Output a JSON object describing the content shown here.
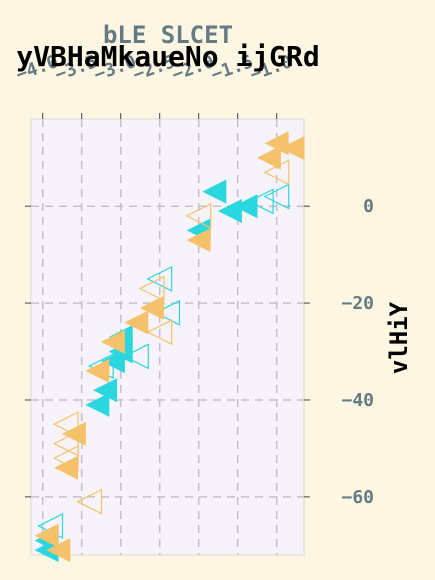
{
  "chart_data": {
    "type": "scatter",
    "suptitle": "bLE SLCET",
    "title": "yVBHaMkaueNo ijGRd",
    "xlabel": "",
    "ylabel": "vlHiY",
    "xlim": [
      -4.15,
      -0.65
    ],
    "ylim": [
      -72,
      18
    ],
    "xticks": [
      -4.0,
      -3.5,
      -3.0,
      -2.5,
      -2.0,
      -1.5,
      -1.0
    ],
    "xtick_labels": [
      "−4.0",
      "−3.5",
      "−3.0",
      "−2.5",
      "−2.0",
      "−1.5",
      "−1.0"
    ],
    "yticks": [
      -60,
      -40,
      -20,
      0
    ],
    "ytick_labels": [
      "−60",
      "−40",
      "−20",
      "0"
    ],
    "grid": true,
    "grid_style": "dashed",
    "legend": "none",
    "colors": {
      "cyan": "#2ad7de",
      "orange": "#f5c26b"
    },
    "series": [
      {
        "marker": "triangle-left",
        "color": "#2ad7de",
        "filled": [
          [
            -1.6,
            -1
          ],
          [
            -1.4,
            0
          ],
          [
            -1.8,
            3
          ],
          [
            -2.0,
            -5
          ],
          [
            -3.0,
            -27
          ],
          [
            -3.0,
            -30
          ],
          [
            -3.1,
            -32
          ],
          [
            -3.2,
            -38
          ],
          [
            -3.3,
            -41
          ],
          [
            -3.95,
            -71
          ],
          [
            -3.95,
            -69
          ]
        ],
        "hollow": [
          [
            -1.0,
            2
          ],
          [
            -1.2,
            1
          ],
          [
            -2.5,
            -15
          ],
          [
            -2.4,
            -22
          ],
          [
            -2.8,
            -31
          ],
          [
            -3.25,
            -33
          ],
          [
            -3.9,
            -66
          ]
        ]
      },
      {
        "marker": "triangle-left",
        "color": "#f5c26b",
        "filled": [
          [
            -1.0,
            13
          ],
          [
            -0.8,
            12
          ],
          [
            -1.1,
            10
          ],
          [
            -2.0,
            -7
          ],
          [
            -2.6,
            -21
          ],
          [
            -2.8,
            -24
          ],
          [
            -3.1,
            -28
          ],
          [
            -3.3,
            -34
          ],
          [
            -3.6,
            -47
          ],
          [
            -3.7,
            -54
          ],
          [
            -3.8,
            -71
          ],
          [
            -3.95,
            -68
          ]
        ],
        "hollow": [
          [
            -1.0,
            7
          ],
          [
            -2.0,
            -2
          ],
          [
            -2.6,
            -17
          ],
          [
            -2.5,
            -26
          ],
          [
            -3.7,
            -45
          ],
          [
            -3.7,
            -49
          ],
          [
            -3.7,
            -52
          ],
          [
            -3.4,
            -61
          ]
        ]
      }
    ]
  }
}
